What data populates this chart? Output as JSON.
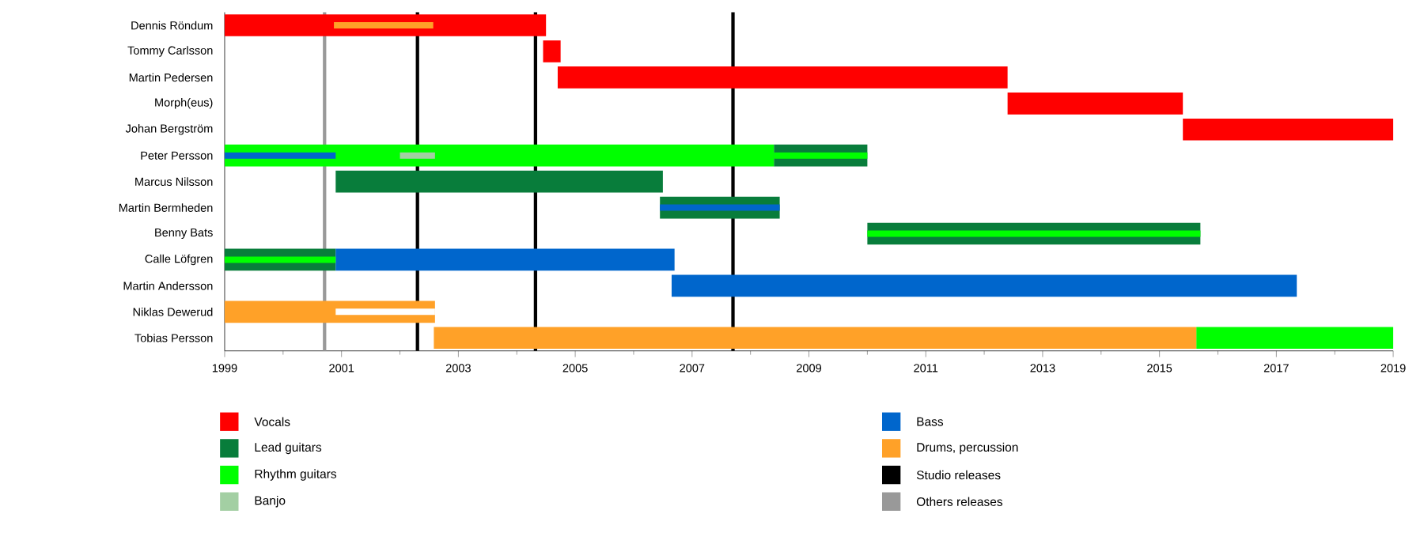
{
  "chart_data": {
    "type": "bar",
    "orientation": "horizontal",
    "legend": "bottom",
    "categories": [
      "Dennis Röndum",
      "Tommy Carlsson",
      "Martin Pedersen",
      "Morph(eus)",
      "Johan Bergström",
      "Peter Persson",
      "Marcus Nilsson",
      "Martin Bermheden",
      "Benny Bats",
      "Calle Löfgren",
      "Martin Andersson",
      "Niklas Dewerud",
      "Tobias Persson"
    ],
    "xlim": [
      1999,
      2019
    ],
    "xticks": [
      1999,
      {
        "value": 2000,
        "label": null
      },
      2001,
      {
        "value": 2002,
        "label": null
      },
      2003,
      {
        "value": 2004,
        "label": null
      },
      2005,
      {
        "value": 2006,
        "label": null
      },
      2007,
      {
        "value": 2008,
        "label": null
      },
      2009,
      {
        "value": 2010,
        "label": null
      },
      2011,
      {
        "value": 2012,
        "label": null
      },
      2013,
      {
        "value": 2014,
        "label": null
      },
      2015,
      {
        "value": 2016,
        "label": null
      },
      2017,
      {
        "value": 2018,
        "label": null
      },
      2019
    ],
    "series": [
      {
        "name": "Vocals",
        "color": "#ff0000",
        "base": [
          1999,
          2004.45,
          2004.7,
          2012.4,
          2015.4,
          null,
          null,
          null,
          null,
          null,
          null,
          null,
          null
        ],
        "values": [
          5.5,
          0.3,
          7.7,
          3.0,
          3.6,
          null,
          null,
          null,
          null,
          null,
          null,
          null,
          null
        ]
      },
      {
        "name": "Lead guitars",
        "color": "#087d3b",
        "base": [
          null,
          null,
          null,
          null,
          null,
          2008.4,
          2000.9,
          2006.45,
          2010,
          1999,
          null,
          null,
          null
        ],
        "values": [
          null,
          null,
          null,
          null,
          null,
          1.6,
          5.6,
          2.05,
          5.7,
          1.9,
          null,
          null,
          null
        ]
      },
      {
        "name": "Rhythm guitars",
        "color": "#00ff00",
        "base": [
          null,
          null,
          null,
          null,
          null,
          1999,
          null,
          null,
          null,
          null,
          null,
          null,
          2015.63
        ],
        "values": [
          null,
          null,
          null,
          null,
          null,
          9.4,
          null,
          null,
          null,
          null,
          null,
          null,
          3.37
        ]
      },
      {
        "name": "Banjo",
        "color": "#a3cfa3",
        "base": [
          null,
          null,
          null,
          null,
          null,
          2002,
          null,
          null,
          null,
          null,
          null,
          null,
          null
        ],
        "values": [
          null,
          null,
          null,
          null,
          null,
          0.6,
          null,
          null,
          null,
          null,
          null,
          null,
          null
        ]
      },
      {
        "name": "Bass",
        "color": "#0066cc",
        "base": [
          null,
          null,
          null,
          null,
          null,
          null,
          null,
          null,
          null,
          2000.9,
          2006.65,
          null,
          null
        ],
        "values": [
          null,
          null,
          null,
          null,
          null,
          null,
          null,
          null,
          null,
          5.8,
          10.7,
          null,
          null
        ]
      },
      {
        "name": "Drums, percussion",
        "color": "#ffa128",
        "base": [
          null,
          null,
          null,
          null,
          null,
          null,
          null,
          null,
          null,
          null,
          null,
          1999,
          2002.58
        ],
        "values": [
          null,
          null,
          null,
          null,
          null,
          null,
          null,
          null,
          null,
          null,
          null,
          3.6,
          13.05
        ]
      },
      {
        "color": "#ffa128",
        "base": [
          2000.87,
          null,
          null,
          null,
          null,
          null,
          null,
          null,
          null,
          null,
          null,
          null,
          null
        ],
        "values": [
          1.7,
          null,
          null,
          null,
          null,
          null,
          null,
          null,
          null,
          null,
          null,
          null,
          null
        ]
      },
      {
        "color": "#0066cc",
        "base": [
          null,
          null,
          null,
          null,
          null,
          1999,
          null,
          2006.45,
          null,
          null,
          null,
          null,
          null
        ],
        "values": [
          null,
          null,
          null,
          null,
          null,
          1.9,
          null,
          2.05,
          null,
          null,
          null,
          null,
          null
        ]
      },
      {
        "color": "#00ff00",
        "base": [
          null,
          null,
          null,
          null,
          null,
          2008.4,
          null,
          null,
          2010,
          1999,
          null,
          null,
          null
        ],
        "values": [
          null,
          null,
          null,
          null,
          null,
          1.6,
          null,
          null,
          5.7,
          1.9,
          null,
          null,
          null
        ]
      },
      {
        "color": "#ffffff",
        "base": [
          null,
          null,
          null,
          null,
          null,
          null,
          null,
          null,
          null,
          null,
          null,
          2000.9,
          null
        ],
        "values": [
          null,
          null,
          null,
          null,
          null,
          null,
          null,
          null,
          null,
          null,
          null,
          1.7,
          null
        ]
      }
    ],
    "ref_lines": [
      {
        "axis": "x",
        "value": 2002.3,
        "label": "Studio releases",
        "color": "#000000"
      },
      {
        "axis": "x",
        "value": 2004.32,
        "color": "#000000"
      },
      {
        "axis": "x",
        "value": 2007.7,
        "color": "#000000"
      },
      {
        "axis": "x",
        "value": 2000.71,
        "label": "Others releases",
        "color": "#999999"
      }
    ]
  }
}
